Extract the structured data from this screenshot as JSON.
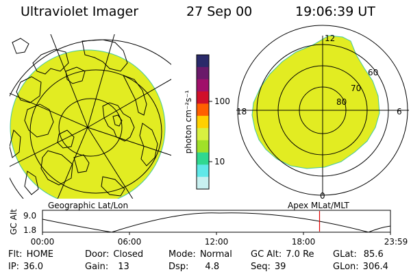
{
  "header": {
    "title": "Ultraviolet Imager",
    "date": "27 Sep 00",
    "time": "19:06:39 UT"
  },
  "colorbar": {
    "label": "photon cm⁻²s⁻¹",
    "ticks": [
      "100",
      "10"
    ],
    "colors": [
      "#2a2a6a",
      "#6a1a6a",
      "#a0106a",
      "#d0102a",
      "#ff6000",
      "#ffd000",
      "#d8f040",
      "#a0e028",
      "#30d890",
      "#60e8e8",
      "#c8f0f0"
    ]
  },
  "right_map": {
    "mlt_labels": [
      "12",
      "18",
      "6",
      "0"
    ],
    "lat_labels": [
      "60",
      "70",
      "80"
    ],
    "fill_color": "#e2ec22"
  },
  "left_map": {
    "fill_color": "#e2ec22"
  },
  "labels": {
    "geo": "Geographic Lat/Lon",
    "apex": "Apex  MLat/MLT"
  },
  "alt_plot": {
    "axis_label": "GC Alt",
    "y_ticks": [
      "9.0",
      "1.8"
    ],
    "x_ticks": [
      "00:00",
      "06:00",
      "12:00",
      "18:00",
      "23:59"
    ],
    "marker_time_hours": 19.11
  },
  "status": {
    "flt": {
      "label": "Flt:",
      "value": "HOME"
    },
    "ip": {
      "label": "IP:",
      "value": "36.0"
    },
    "door": {
      "label": "Door:",
      "value": "Closed"
    },
    "gain": {
      "label": "Gain:",
      "value": "13"
    },
    "mode": {
      "label": "Mode:",
      "value": "Normal"
    },
    "dsp": {
      "label": "Dsp:",
      "value": "4.8"
    },
    "gcalt": {
      "label": "GC Alt:",
      "value": "7.0 Re"
    },
    "seq": {
      "label": "Seq:",
      "value": "39"
    },
    "glat": {
      "label": "GLat:",
      "value": "85.6"
    },
    "glon": {
      "label": "GLon:",
      "value": "306.4"
    }
  }
}
